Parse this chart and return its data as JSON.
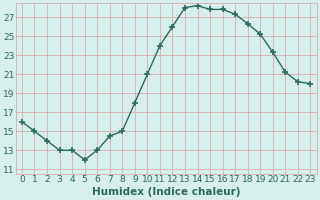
{
  "x": [
    0,
    1,
    2,
    3,
    4,
    5,
    6,
    7,
    8,
    9,
    10,
    11,
    12,
    13,
    14,
    15,
    16,
    17,
    18,
    19,
    20,
    21,
    22,
    23
  ],
  "y": [
    16,
    15,
    14,
    13,
    13,
    12,
    13,
    14.5,
    15,
    18,
    21,
    24,
    26,
    28,
    28.2,
    27.8,
    27.8,
    27.3,
    26.3,
    25.2,
    23.3,
    21.2,
    20.2,
    20
  ],
  "line_color": "#2d6b5e",
  "marker": "+",
  "marker_size": 4,
  "marker_linewidth": 1.2,
  "bg_color": "#d6efed",
  "grid_color_major": "#d9a0a0",
  "grid_color_minor": "#d9a0a0",
  "xlabel": "Humidex (Indice chaleur)",
  "xlim": [
    -0.5,
    23.5
  ],
  "ylim": [
    10.5,
    28.5
  ],
  "yticks": [
    11,
    13,
    15,
    17,
    19,
    21,
    23,
    25,
    27
  ],
  "xticks": [
    0,
    1,
    2,
    3,
    4,
    5,
    6,
    7,
    8,
    9,
    10,
    11,
    12,
    13,
    14,
    15,
    16,
    17,
    18,
    19,
    20,
    21,
    22,
    23
  ],
  "font_color": "#2d6b5e",
  "tick_fontsize": 6.5,
  "xlabel_fontsize": 7.5,
  "linewidth": 1.0
}
